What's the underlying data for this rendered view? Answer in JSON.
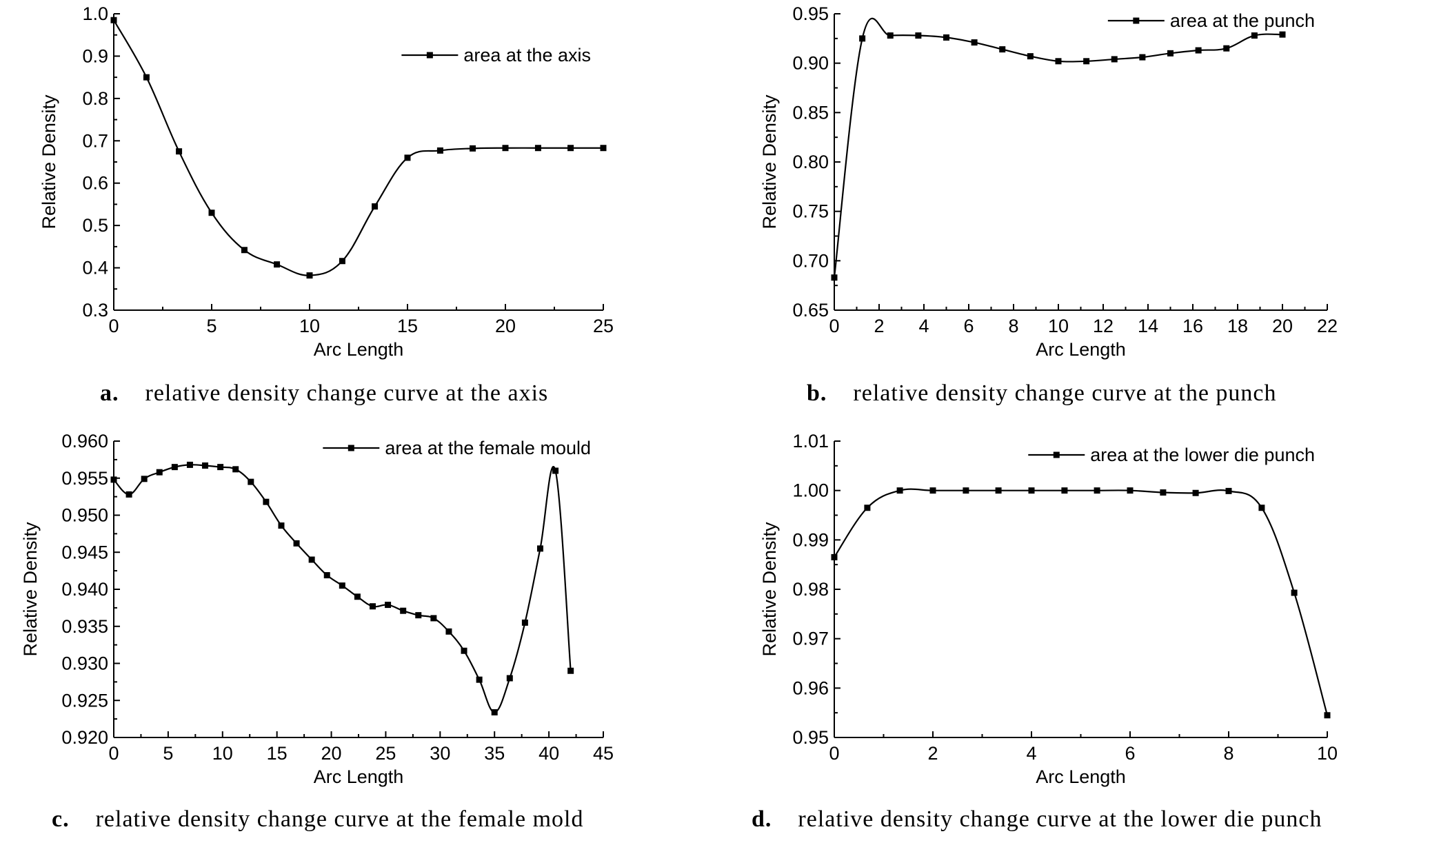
{
  "chart_data": [
    {
      "id": "a",
      "type": "line",
      "xlabel": "Arc Length",
      "ylabel": "Relative Density",
      "xlim": [
        0,
        25
      ],
      "ylim": [
        0.3,
        1.0
      ],
      "xticks": [
        0,
        5,
        10,
        15,
        20,
        25
      ],
      "yticks": [
        0.3,
        0.4,
        0.5,
        0.6,
        0.7,
        0.8,
        0.9,
        1.0
      ],
      "ytick_labels": [
        "0.3",
        "0.4",
        "0.5",
        "0.6",
        "0.7",
        "0.8",
        "0.9",
        "1.0"
      ],
      "legend_position": "top-right",
      "series": [
        {
          "name": "area at the axis",
          "x": [
            0,
            1.67,
            3.33,
            5.0,
            6.67,
            8.33,
            10.0,
            11.67,
            13.33,
            15.0,
            16.67,
            18.33,
            20.0,
            21.67,
            23.33,
            25.0
          ],
          "y": [
            0.985,
            0.85,
            0.675,
            0.53,
            0.442,
            0.408,
            0.382,
            0.416,
            0.545,
            0.66,
            0.677,
            0.682,
            0.683,
            0.683,
            0.683,
            0.683
          ]
        }
      ],
      "caption_letter": "a.",
      "caption_text": "relative density change curve at the axis"
    },
    {
      "id": "b",
      "type": "line",
      "xlabel": "Arc Length",
      "ylabel": "Relative Density",
      "xlim": [
        0,
        22
      ],
      "ylim": [
        0.65,
        0.95
      ],
      "xticks": [
        0,
        2,
        4,
        6,
        8,
        10,
        12,
        14,
        16,
        18,
        20,
        22
      ],
      "yticks": [
        0.65,
        0.7,
        0.75,
        0.8,
        0.85,
        0.9,
        0.95
      ],
      "ytick_labels": [
        "0.65",
        "0.70",
        "0.75",
        "0.80",
        "0.85",
        "0.90",
        "0.95"
      ],
      "legend_position": "top-right",
      "series": [
        {
          "name": "area at the punch",
          "x": [
            0,
            1.25,
            2.5,
            3.75,
            5.0,
            6.25,
            7.5,
            8.75,
            10.0,
            11.25,
            12.5,
            13.75,
            15.0,
            16.25,
            17.5,
            18.75,
            20.0
          ],
          "y": [
            0.683,
            0.925,
            0.928,
            0.928,
            0.926,
            0.921,
            0.914,
            0.907,
            0.902,
            0.902,
            0.904,
            0.906,
            0.91,
            0.913,
            0.915,
            0.928,
            0.929
          ]
        }
      ],
      "caption_letter": "b.",
      "caption_text": "relative density change curve at the punch"
    },
    {
      "id": "c",
      "type": "line",
      "xlabel": "Arc Length",
      "ylabel": "Relative Density",
      "xlim": [
        0,
        45
      ],
      "ylim": [
        0.92,
        0.96
      ],
      "xticks": [
        0,
        5,
        10,
        15,
        20,
        25,
        30,
        35,
        40,
        45
      ],
      "yticks": [
        0.92,
        0.925,
        0.93,
        0.935,
        0.94,
        0.945,
        0.95,
        0.955,
        0.96
      ],
      "ytick_labels": [
        "0.920",
        "0.925",
        "0.930",
        "0.935",
        "0.940",
        "0.945",
        "0.950",
        "0.955",
        "0.960"
      ],
      "legend_position": "top-right",
      "series": [
        {
          "name": "area at the female mould",
          "x": [
            0,
            1.4,
            2.8,
            4.2,
            5.6,
            7.0,
            8.4,
            9.8,
            11.2,
            12.6,
            14.0,
            15.4,
            16.8,
            18.2,
            19.6,
            21.0,
            22.4,
            23.8,
            25.2,
            26.6,
            28.0,
            29.4,
            30.8,
            32.2,
            33.6,
            35.0,
            36.4,
            37.8,
            39.2,
            40.6,
            42.0
          ],
          "y": [
            0.9548,
            0.9528,
            0.9549,
            0.9558,
            0.9565,
            0.9568,
            0.9567,
            0.9565,
            0.9562,
            0.9545,
            0.9518,
            0.9486,
            0.9462,
            0.944,
            0.9419,
            0.9405,
            0.939,
            0.9377,
            0.9379,
            0.9371,
            0.9365,
            0.9361,
            0.9343,
            0.9317,
            0.9278,
            0.9234,
            0.928,
            0.9355,
            0.9455,
            0.956,
            0.929
          ]
        }
      ],
      "caption_letter": "c.",
      "caption_text": "relative density change curve at the female mold"
    },
    {
      "id": "d",
      "type": "line",
      "xlabel": "Arc Length",
      "ylabel": "Relative Density",
      "xlim": [
        0,
        10
      ],
      "ylim": [
        0.95,
        1.01
      ],
      "xticks": [
        0,
        2,
        4,
        6,
        8,
        10
      ],
      "yticks": [
        0.95,
        0.96,
        0.97,
        0.98,
        0.99,
        1.0,
        1.01
      ],
      "ytick_labels": [
        "0.95",
        "0.96",
        "0.97",
        "0.98",
        "0.99",
        "1.00",
        "1.01"
      ],
      "legend_position": "top-right",
      "series": [
        {
          "name": "area at the lower die punch",
          "x": [
            0,
            0.67,
            1.33,
            2.0,
            2.67,
            3.33,
            4.0,
            4.67,
            5.33,
            6.0,
            6.67,
            7.33,
            8.0,
            8.67,
            9.33,
            10.0
          ],
          "y": [
            0.9865,
            0.9965,
            1.0,
            1.0,
            1.0,
            1.0,
            1.0,
            1.0,
            1.0,
            1.0,
            0.9996,
            0.9995,
            0.9999,
            0.9965,
            0.9793,
            0.9545
          ]
        }
      ],
      "caption_letter": "d.",
      "caption_text": "relative density change curve at the lower die punch"
    }
  ]
}
